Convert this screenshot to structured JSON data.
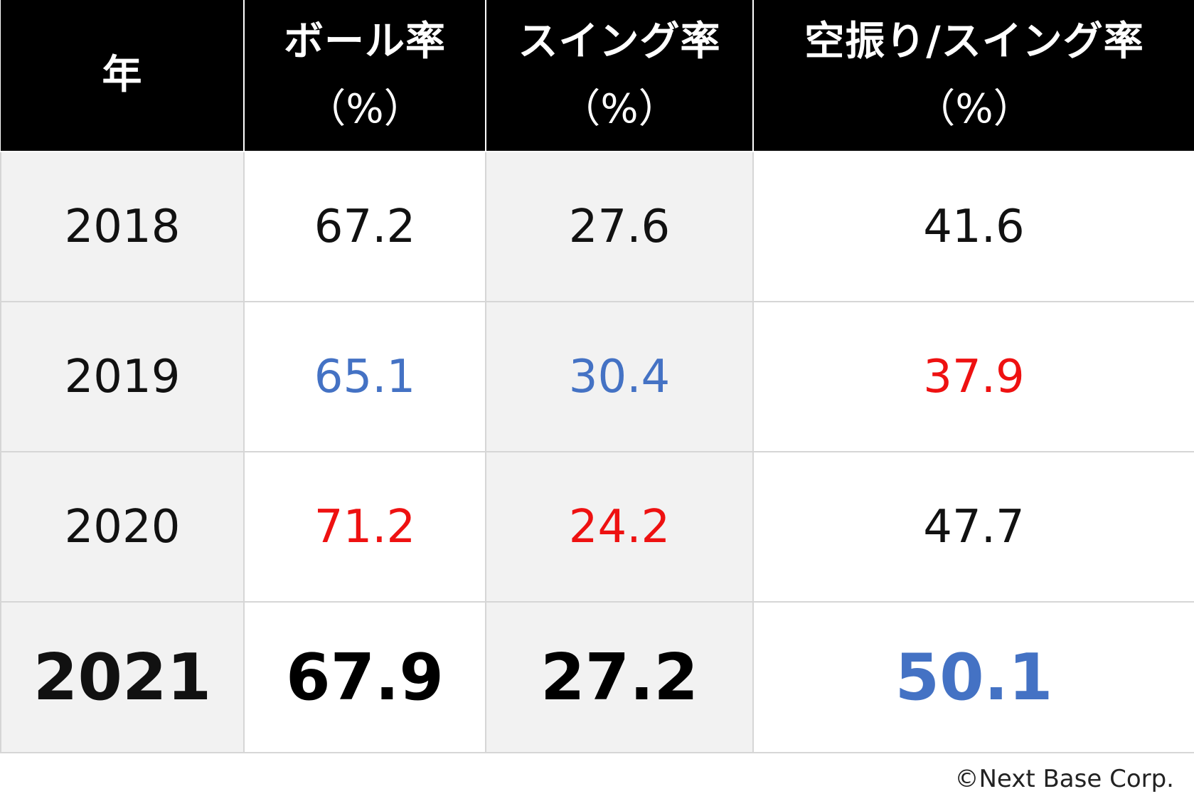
{
  "chart_data": {
    "type": "table",
    "columns": [
      {
        "line1": "年",
        "line2": ""
      },
      {
        "line1": "ボール率",
        "line2": "（%）"
      },
      {
        "line1": "スイング率",
        "line2": "（%）"
      },
      {
        "line1": "空振り/スイング率",
        "line2": "（%）"
      }
    ],
    "rows": [
      {
        "year": "2018",
        "cells": [
          {
            "value": "67.2",
            "color": "#111111"
          },
          {
            "value": "27.6",
            "color": "#111111"
          },
          {
            "value": "41.6",
            "color": "#111111"
          }
        ]
      },
      {
        "year": "2019",
        "cells": [
          {
            "value": "65.1",
            "color": "#4472c4"
          },
          {
            "value": "30.4",
            "color": "#4472c4"
          },
          {
            "value": "37.9",
            "color": "#ee1111"
          }
        ]
      },
      {
        "year": "2020",
        "cells": [
          {
            "value": "71.2",
            "color": "#ee1111"
          },
          {
            "value": "24.2",
            "color": "#ee1111"
          },
          {
            "value": "47.7",
            "color": "#111111"
          }
        ]
      },
      {
        "year": "2021",
        "bold": true,
        "cells": [
          {
            "value": "67.9",
            "color": "#000000"
          },
          {
            "value": "27.2",
            "color": "#000000"
          },
          {
            "value": "50.1",
            "color": "#4472c4"
          }
        ]
      }
    ]
  },
  "credit": "©Next Base Corp."
}
